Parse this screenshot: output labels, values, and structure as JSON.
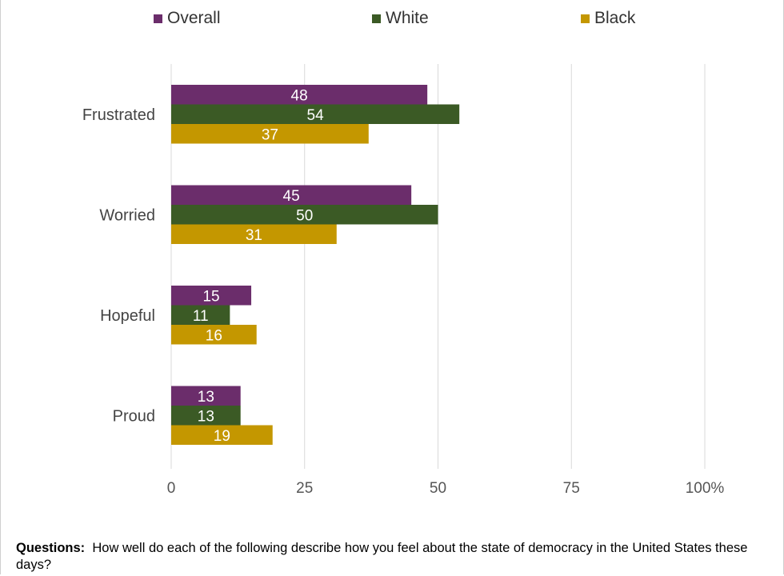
{
  "chart_data": {
    "type": "bar",
    "orientation": "horizontal",
    "categories": [
      "Frustrated",
      "Worried",
      "Hopeful",
      "Proud"
    ],
    "series": [
      {
        "name": "Overall",
        "color": "#6b2d6b",
        "values": [
          48,
          45,
          15,
          13
        ]
      },
      {
        "name": "White",
        "color": "#3b5a25",
        "values": [
          54,
          50,
          11,
          13
        ]
      },
      {
        "name": "Black",
        "color": "#c49700",
        "values": [
          37,
          31,
          16,
          19
        ]
      }
    ],
    "x_ticks": [
      "0",
      "25",
      "50",
      "75",
      "100%"
    ],
    "xlim": [
      0,
      100
    ],
    "grid": true,
    "legend_position": "top",
    "data_labels": true
  },
  "footer": {
    "label": "Questions:",
    "text": "How well do each of the following describe how you feel about the state of democracy in the United States these days?"
  }
}
